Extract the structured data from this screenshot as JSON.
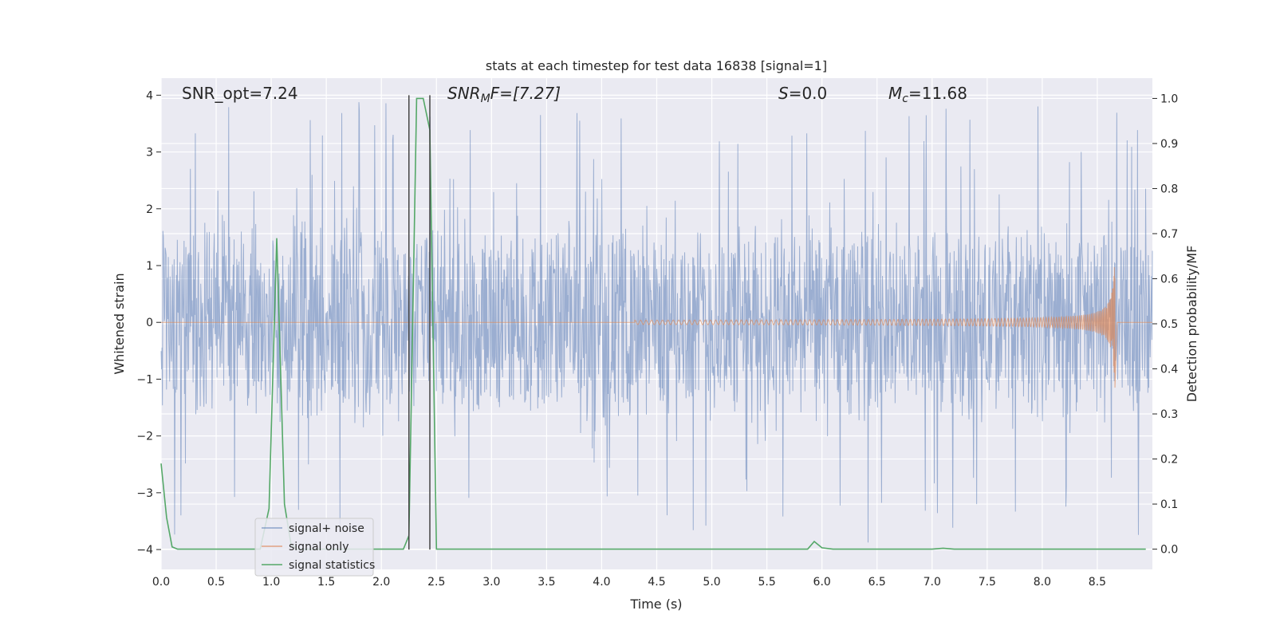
{
  "chart_data": {
    "type": "line",
    "title": "stats at each timestep for test data 16838 [signal=1]",
    "xlabel": "Time (s)",
    "ylabel_left": "Whitened strain",
    "ylabel_right": "Detection probability/MF",
    "xlim": [
      0.0,
      9.0
    ],
    "ylim_left": [
      -4.35,
      4.3
    ],
    "ylim_right": [
      -0.045,
      1.045
    ],
    "x_ticks": [
      0.0,
      0.5,
      1.0,
      1.5,
      2.0,
      2.5,
      3.0,
      3.5,
      4.0,
      4.5,
      5.0,
      5.5,
      6.0,
      6.5,
      7.0,
      7.5,
      8.0,
      8.5
    ],
    "x_tick_labels": [
      "0.0",
      "0.5",
      "1.0",
      "1.5",
      "2.0",
      "2.5",
      "3.0",
      "3.5",
      "4.0",
      "4.5",
      "5.0",
      "5.5",
      "6.0",
      "6.5",
      "7.0",
      "7.5",
      "8.0",
      "8.5"
    ],
    "y_left_ticks": [
      4,
      3,
      2,
      1,
      0,
      -1,
      -2,
      -3,
      -4
    ],
    "y_left_tick_labels": [
      "4",
      "3",
      "2",
      "1",
      "0",
      "−1",
      "−2",
      "−3",
      "−4"
    ],
    "y_right_ticks": [
      1.0,
      0.9,
      0.8,
      0.7,
      0.6,
      0.5,
      0.4,
      0.3,
      0.2,
      0.1,
      0.0
    ],
    "y_right_tick_labels": [
      "1.0",
      "0.9",
      "0.8",
      "0.7",
      "0.6",
      "0.5",
      "0.4",
      "0.3",
      "0.2",
      "0.1",
      "0.0"
    ],
    "grid": true,
    "legend_position": "lower-left",
    "annotations": {
      "snr_opt": "SNR_opt=7.24",
      "snr_mf_main": "SNR",
      "snr_mf_sub": "M",
      "snr_mf_rest": "F=[7.27]",
      "s_main": "S",
      "s_rest": "=0.0",
      "mc_main": "M",
      "mc_sub": "c",
      "mc_rest": "=11.68"
    },
    "vertical_markers": [
      {
        "x": 2.25,
        "y_top": 4.0,
        "y_bottom": -4.0
      },
      {
        "x": 2.44,
        "y_top": 4.0,
        "y_bottom": -4.0
      }
    ],
    "series": [
      {
        "name": "signal+ noise",
        "color": "#4c72b0",
        "kind": "noise",
        "typical_max_abs": 1.9,
        "peak_max": 3.9,
        "peak_min": -3.9
      },
      {
        "name": "signal only",
        "color": "#dd8452",
        "kind": "chirp",
        "start_x": 4.3,
        "merger_x": 8.66,
        "peak_amplitude": 1.27,
        "min_amplitude": -1.15
      },
      {
        "name": "signal statistics",
        "color": "#55a868",
        "kind": "probability",
        "x": [
          0.0,
          0.05,
          0.1,
          0.15,
          0.2,
          0.5,
          0.9,
          0.98,
          1.05,
          1.12,
          1.18,
          1.23,
          1.5,
          2.0,
          2.2,
          2.25,
          2.32,
          2.38,
          2.44,
          2.5,
          3.0,
          4.0,
          5.0,
          5.87,
          5.93,
          6.0,
          6.1,
          7.0,
          7.1,
          7.2,
          8.0,
          8.94
        ],
        "y": [
          0.19,
          0.07,
          0.005,
          0.0,
          0.0,
          0.0,
          0.0,
          0.09,
          0.69,
          0.1,
          0.01,
          0.0,
          0.0,
          0.0,
          0.0,
          0.03,
          1.0,
          1.0,
          0.93,
          0.0,
          0.0,
          0.0,
          0.0,
          0.0,
          0.017,
          0.003,
          0.0,
          0.0,
          0.002,
          0.0,
          0.0,
          0.0
        ]
      }
    ]
  }
}
